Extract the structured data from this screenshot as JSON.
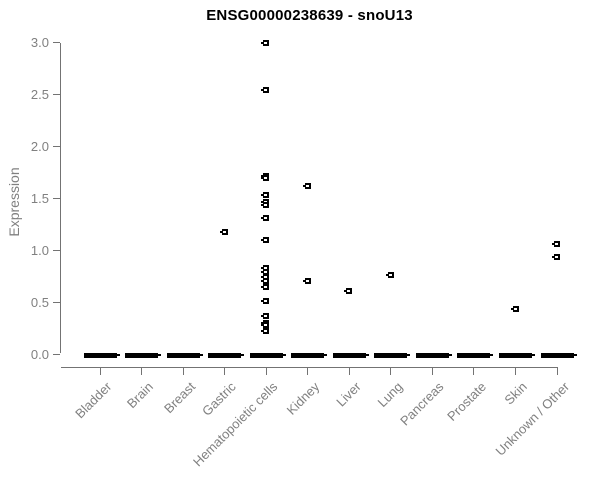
{
  "title": "ENSG00000238639 - snoU13",
  "colors": {
    "title": "#000000",
    "axis_line": "#737373",
    "axis_text": "#808080",
    "point": "#000000",
    "background": "#ffffff"
  },
  "chart_data": {
    "type": "scatter",
    "title": "ENSG00000238639 - snoU13",
    "xlabel": "",
    "ylabel": "Expression",
    "ylim": [
      0.0,
      3.0
    ],
    "yticks": [
      0.0,
      0.5,
      1.0,
      1.5,
      2.0,
      2.5,
      3.0
    ],
    "grid": false,
    "legend": null,
    "marker": "black open square",
    "zero_marker": "thick black dash of many overlapping points at y=0 in every category",
    "categories": [
      "Bladder",
      "Brain",
      "Breast",
      "Gastric",
      "Hematopoietic cells",
      "Kidney",
      "Liver",
      "Lung",
      "Pancreas",
      "Prostate",
      "Skin",
      "Unknown / Other"
    ],
    "series": [
      {
        "category": "Bladder",
        "zero_dash": true,
        "values": []
      },
      {
        "category": "Brain",
        "zero_dash": true,
        "values": []
      },
      {
        "category": "Breast",
        "zero_dash": true,
        "values": []
      },
      {
        "category": "Gastric",
        "zero_dash": true,
        "values": [
          1.18
        ]
      },
      {
        "category": "Hematopoietic cells",
        "zero_dash": true,
        "values": [
          3.0,
          2.55,
          1.72,
          1.7,
          1.53,
          1.47,
          1.44,
          1.31,
          1.1,
          0.83,
          0.79,
          0.74,
          0.7,
          0.65,
          0.51,
          0.37,
          0.3,
          0.28,
          0.22
        ]
      },
      {
        "category": "Kidney",
        "zero_dash": true,
        "values": [
          1.62,
          0.7
        ]
      },
      {
        "category": "Liver",
        "zero_dash": true,
        "values": [
          0.61
        ]
      },
      {
        "category": "Lung",
        "zero_dash": true,
        "values": [
          0.76
        ]
      },
      {
        "category": "Pancreas",
        "zero_dash": true,
        "values": []
      },
      {
        "category": "Prostate",
        "zero_dash": true,
        "values": []
      },
      {
        "category": "Skin",
        "zero_dash": true,
        "values": [
          0.43
        ]
      },
      {
        "category": "Unknown / Other",
        "zero_dash": true,
        "values": [
          1.06,
          0.94
        ]
      }
    ]
  }
}
